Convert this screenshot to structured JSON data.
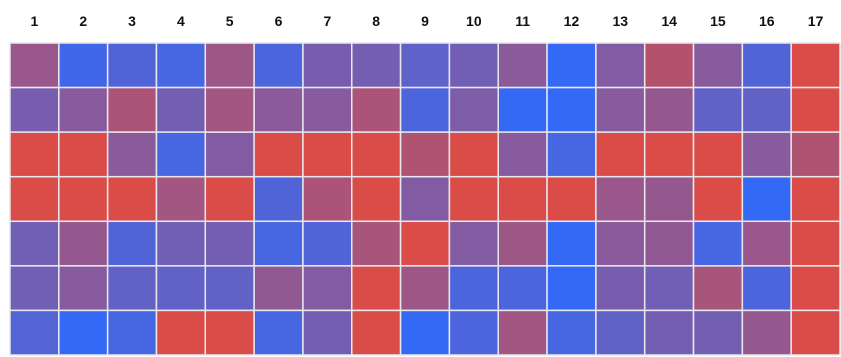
{
  "chart_data": {
    "type": "heatmap",
    "title": "",
    "xlabel": "",
    "ylabel": "",
    "columns": [
      "1",
      "2",
      "3",
      "4",
      "5",
      "6",
      "7",
      "8",
      "9",
      "10",
      "11",
      "12",
      "13",
      "14",
      "15",
      "16",
      "17"
    ],
    "row_count": 7,
    "legend": "none",
    "colorscale": {
      "low": "#2B6BFF",
      "high": "#E24A3D"
    },
    "value_range": [
      0,
      1
    ],
    "values": [
      [
        0.6,
        0.12,
        0.2,
        0.15,
        0.62,
        0.18,
        0.42,
        0.4,
        0.28,
        0.38,
        0.52,
        0.05,
        0.48,
        0.75,
        0.5,
        0.2,
        0.95
      ],
      [
        0.42,
        0.5,
        0.7,
        0.4,
        0.65,
        0.52,
        0.5,
        0.7,
        0.18,
        0.45,
        0.05,
        0.05,
        0.5,
        0.58,
        0.3,
        0.3,
        0.95
      ],
      [
        0.95,
        0.95,
        0.52,
        0.15,
        0.48,
        0.95,
        0.95,
        0.95,
        0.72,
        0.95,
        0.5,
        0.15,
        0.95,
        0.95,
        0.95,
        0.5,
        0.72
      ],
      [
        0.95,
        0.95,
        0.95,
        0.65,
        0.95,
        0.2,
        0.7,
        0.95,
        0.48,
        0.95,
        0.95,
        0.95,
        0.6,
        0.58,
        0.95,
        0.05,
        0.95
      ],
      [
        0.38,
        0.58,
        0.2,
        0.38,
        0.4,
        0.15,
        0.2,
        0.68,
        0.95,
        0.48,
        0.62,
        0.05,
        0.52,
        0.55,
        0.15,
        0.6,
        0.95
      ],
      [
        0.38,
        0.5,
        0.3,
        0.3,
        0.3,
        0.55,
        0.48,
        0.95,
        0.62,
        0.18,
        0.18,
        0.05,
        0.42,
        0.38,
        0.68,
        0.18,
        0.95
      ],
      [
        0.22,
        0.05,
        0.15,
        0.95,
        0.95,
        0.15,
        0.4,
        0.95,
        0.05,
        0.18,
        0.65,
        0.15,
        0.3,
        0.4,
        0.4,
        0.58,
        0.95
      ]
    ]
  }
}
